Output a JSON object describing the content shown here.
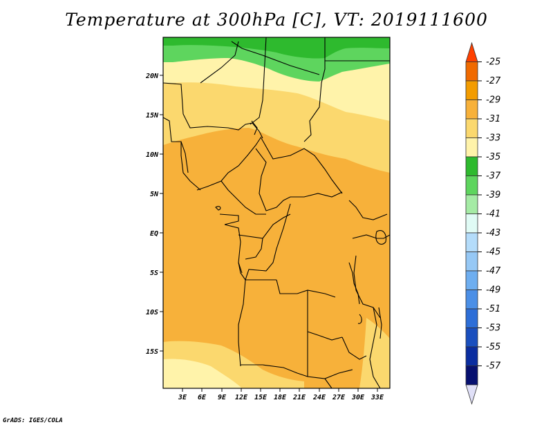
{
  "title": "Temperature at 300hPa [C], VT: 2019111600",
  "footer": "GrADS: IGES/COLA",
  "map": {
    "lat_labels": [
      "20N",
      "15N",
      "10N",
      "5N",
      "EQ",
      "5S",
      "10S",
      "15S"
    ],
    "lon_labels": [
      "3E",
      "6E",
      "9E",
      "12E",
      "15E",
      "18E",
      "21E",
      "24E",
      "27E",
      "30E",
      "33E"
    ]
  },
  "colorbar": {
    "labels": [
      "-25",
      "-27",
      "-29",
      "-31",
      "-33",
      "-35",
      "-37",
      "-39",
      "-41",
      "-43",
      "-45",
      "-47",
      "-49",
      "-51",
      "-53",
      "-55",
      "-57"
    ],
    "colors": [
      "#ff4000",
      "#f06a00",
      "#f39c00",
      "#f7b13a",
      "#fbd86e",
      "#fff3aa",
      "#2eba2e",
      "#5ed55e",
      "#a5eba5",
      "#e0fbf5",
      "#b4dcfa",
      "#96c8f5",
      "#6eaef0",
      "#4b8fe6",
      "#2d6ed7",
      "#1a4fbe",
      "#0a2da0",
      "#061070",
      "#e0e0f8"
    ]
  }
}
